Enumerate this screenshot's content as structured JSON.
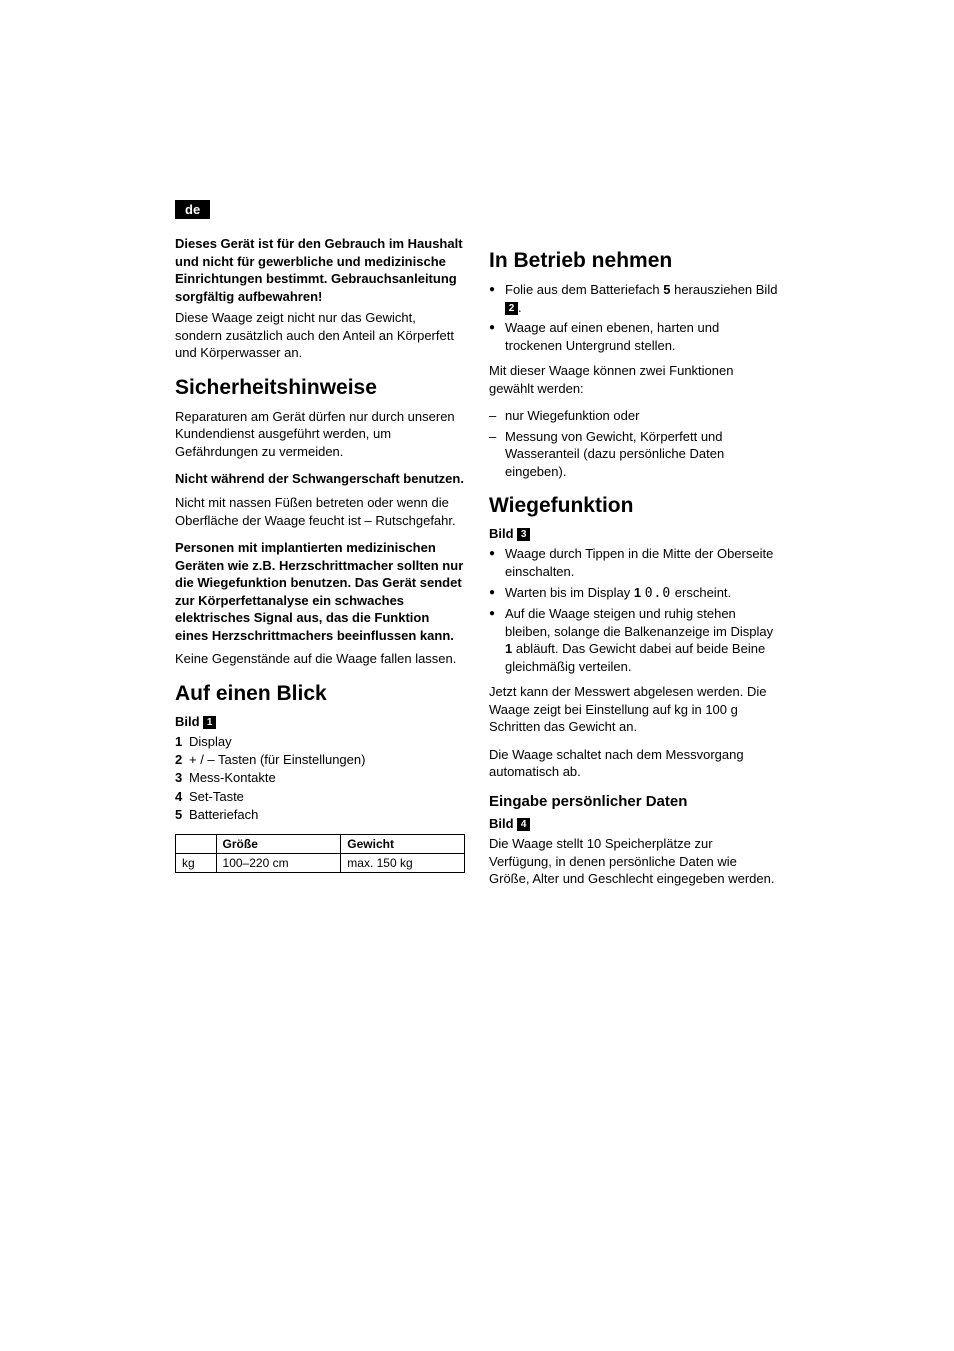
{
  "lang_badge": "de",
  "intro": {
    "bold": "Dieses Gerät ist für den Gebrauch im Haushalt und nicht für gewerbliche und medizinische Einrichtungen bestimmt. Gebrauchsanleitung sorgfältig aufbewahren!",
    "text": "Diese Waage zeigt nicht nur das Gewicht, sondern zusätzlich auch den Anteil an Körperfett und Körperwasser an."
  },
  "safety": {
    "heading": "Sicherheitshinweise",
    "p1": "Reparaturen am Gerät dürfen nur durch unseren Kundendienst ausgeführt werden, um Gefährdungen zu vermeiden.",
    "b1": "Nicht während der Schwangerschaft benutzen.",
    "p2": "Nicht mit nassen Füßen betreten oder wenn die Oberfläche der Waage feucht ist – Rutschgefahr.",
    "b2": "Personen mit implantierten medizinischen Geräten wie z.B. Herzschrittmacher sollten nur die Wiegefunktion benutzen. Das Gerät sendet zur Körperfettanalyse ein schwaches elektrisches Signal aus, das die Funktion eines Herzschrittmachers beeinflussen kann.",
    "p3": "Keine Gegenstände auf die Waage fallen lassen."
  },
  "overview": {
    "heading": "Auf einen Blick",
    "bild_label": "Bild",
    "bild_num": "1",
    "items": {
      "n1": "1",
      "t1": "Display",
      "n2": "2",
      "t2": "+ / – Tasten (für Einstellungen)",
      "n3": "3",
      "t3": "Mess-Kontakte",
      "n4": "4",
      "t4": "Set-Taste",
      "n5": "5",
      "t5": "Batteriefach"
    },
    "table": {
      "h0": "",
      "h1": "Größe",
      "h2": "Gewicht",
      "r0c0": "kg",
      "r0c1": "100–220 cm",
      "r0c2": "max. 150 kg"
    }
  },
  "startup": {
    "heading": "In Betrieb nehmen",
    "li1_a": "Folie aus dem Batteriefach ",
    "li1_b": "5",
    "li1_c": " herausziehen Bild ",
    "li1_badge": "2",
    "li1_d": ".",
    "li2": "Waage auf einen ebenen, harten und trockenen Untergrund stellen.",
    "p1": "Mit dieser Waage können zwei Funktionen gewählt werden:",
    "d1": "nur Wiegefunktion oder",
    "d2": "Messung von Gewicht, Körperfett und Wasseranteil (dazu persönliche Daten eingeben)."
  },
  "weigh": {
    "heading": "Wiegefunktion",
    "bild_label": "Bild",
    "bild_num": "3",
    "li1": "Waage durch Tippen in die Mitte der Oberseite einschalten.",
    "li2_a": "Warten bis im Display ",
    "li2_b": "1",
    "li2_c": " ",
    "li2_digit": "0.0",
    "li2_d": " erscheint.",
    "li3_a": "Auf die Waage steigen und ruhig stehen bleiben, solange die Balkenanzeige im Display ",
    "li3_b": "1",
    "li3_c": " abläuft. Das Gewicht dabei auf beide Beine gleichmäßig verteilen.",
    "p1": "Jetzt kann der Messwert abgelesen werden. Die Waage zeigt bei Einstellung auf kg in 100 g Schritten das Gewicht an.",
    "p2": "Die Waage schaltet nach dem Messvorgang automatisch ab."
  },
  "personal": {
    "heading": "Eingabe persönlicher Daten",
    "bild_label": "Bild",
    "bild_num": "4",
    "p1": "Die Waage stellt 10 Speicherplätze zur Verfügung, in denen persönliche Daten wie Größe, Alter und Geschlecht eingegeben werden."
  }
}
